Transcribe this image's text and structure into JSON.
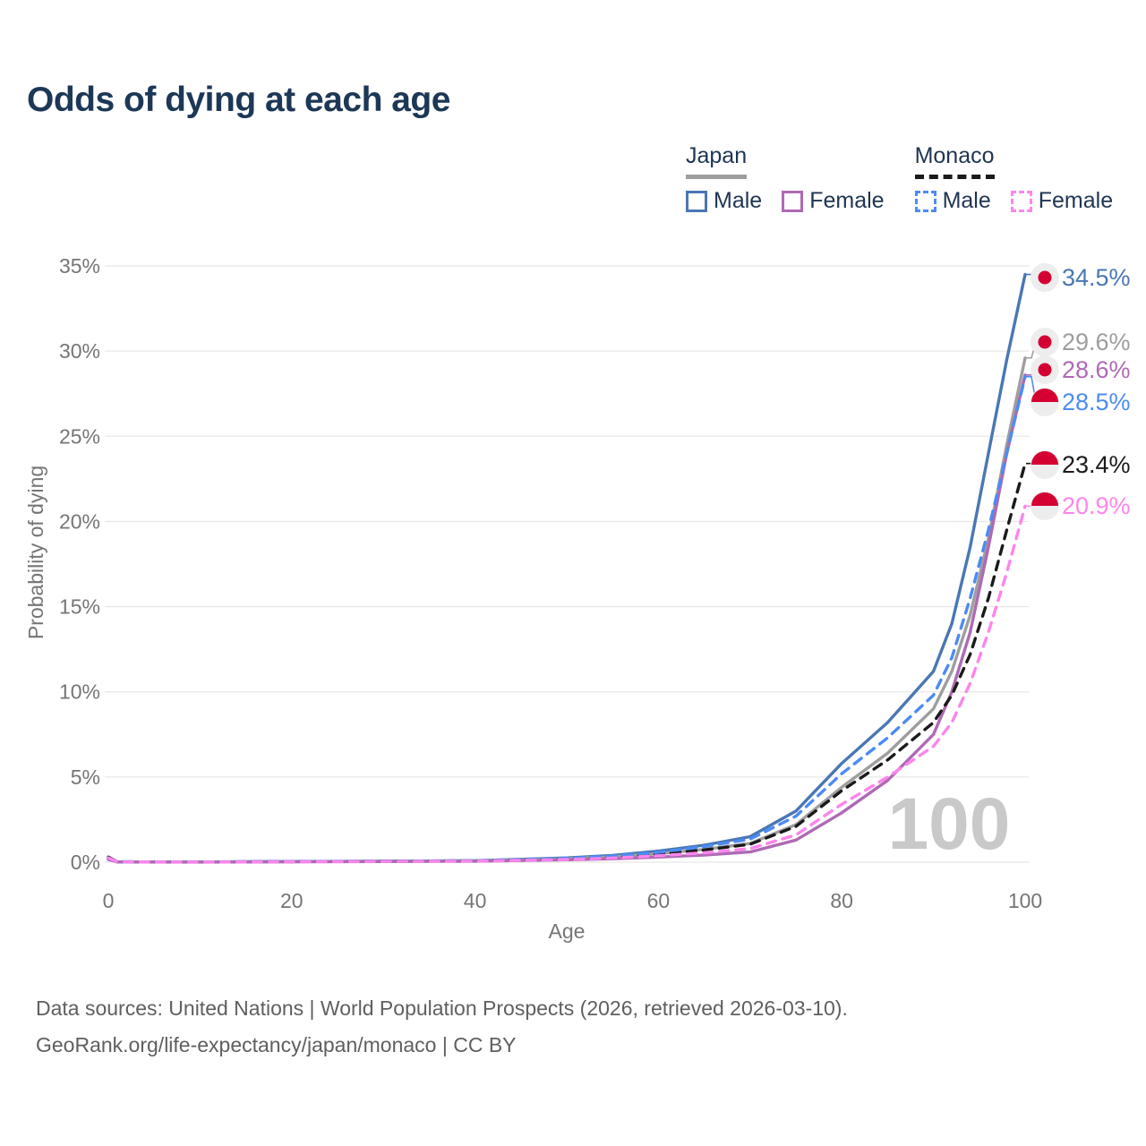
{
  "page": {
    "title": "Odds of dying at each age"
  },
  "legend": {
    "groups": [
      {
        "name": "Japan",
        "line_style": "solid",
        "items": [
          {
            "label": "Male",
            "color": "#4a77b4"
          },
          {
            "label": "Female",
            "color": "#ae6ab4"
          }
        ]
      },
      {
        "name": "Monaco",
        "line_style": "dashed",
        "items": [
          {
            "label": "Male",
            "color": "#4c8bf5"
          },
          {
            "label": "Female",
            "color": "#fc85ec"
          }
        ]
      }
    ]
  },
  "chart_data": {
    "type": "line",
    "title": "Odds of dying at each age",
    "xlabel": "Age",
    "ylabel": "Probability of dying",
    "xlim": [
      0,
      100
    ],
    "ylim": [
      0,
      35
    ],
    "x_ticks": [
      0,
      20,
      40,
      60,
      80,
      100
    ],
    "y_ticks": [
      0,
      5,
      10,
      15,
      20,
      25,
      30,
      35
    ],
    "y_tick_suffix": "%",
    "grid": true,
    "legend_position": "top-right",
    "x": [
      0,
      1,
      10,
      20,
      30,
      40,
      50,
      55,
      60,
      65,
      70,
      75,
      80,
      85,
      90,
      92,
      94,
      96,
      98,
      100
    ],
    "series": [
      {
        "name": "Japan Male",
        "country": "Japan",
        "sex": "Male",
        "color": "#4a77b4",
        "dashed": false,
        "flag": "japan",
        "end_label": "34.5%",
        "values": [
          0.2,
          0.02,
          0.01,
          0.04,
          0.06,
          0.09,
          0.25,
          0.4,
          0.65,
          1.0,
          1.5,
          3.0,
          5.8,
          8.2,
          11.2,
          14.0,
          18.5,
          24.0,
          29.5,
          34.5
        ]
      },
      {
        "name": "Japan Total",
        "country": "Japan",
        "sex": "Total",
        "color": "#9e9e9e",
        "dashed": false,
        "flag": "japan",
        "end_label": "29.6%",
        "values": [
          0.18,
          0.015,
          0.008,
          0.03,
          0.05,
          0.08,
          0.2,
          0.32,
          0.5,
          0.75,
          1.1,
          2.2,
          4.4,
          6.4,
          9.0,
          11.2,
          14.5,
          19.0,
          24.5,
          29.6
        ]
      },
      {
        "name": "Japan Female",
        "country": "Japan",
        "sex": "Female",
        "color": "#ae6ab4",
        "dashed": false,
        "flag": "japan",
        "end_label": "28.6%",
        "values": [
          0.16,
          0.012,
          0.007,
          0.02,
          0.035,
          0.06,
          0.14,
          0.2,
          0.3,
          0.42,
          0.6,
          1.3,
          2.9,
          4.8,
          7.5,
          10.0,
          13.5,
          18.5,
          24.0,
          28.6
        ]
      },
      {
        "name": "Monaco Male",
        "country": "Monaco",
        "sex": "Male",
        "color": "#4c8bf5",
        "dashed": true,
        "flag": "monaco",
        "end_label": "28.5%",
        "values": [
          0.25,
          0.02,
          0.01,
          0.035,
          0.055,
          0.085,
          0.22,
          0.36,
          0.58,
          0.92,
          1.35,
          2.7,
          5.2,
          7.3,
          9.8,
          12.0,
          15.5,
          19.5,
          24.0,
          28.5
        ]
      },
      {
        "name": "Monaco Total",
        "country": "Monaco",
        "sex": "Total",
        "color": "#1a1a1a",
        "dashed": true,
        "flag": "monaco",
        "end_label": "23.4%",
        "values": [
          0.3,
          0.02,
          0.008,
          0.03,
          0.05,
          0.08,
          0.2,
          0.3,
          0.48,
          0.72,
          1.05,
          2.1,
          4.2,
          6.0,
          8.2,
          9.8,
          12.2,
          15.5,
          19.5,
          23.4
        ]
      },
      {
        "name": "Monaco Female",
        "country": "Monaco",
        "sex": "Female",
        "color": "#fc85ec",
        "dashed": true,
        "flag": "monaco",
        "end_label": "20.9%",
        "values": [
          0.25,
          0.015,
          0.007,
          0.022,
          0.04,
          0.065,
          0.16,
          0.24,
          0.38,
          0.55,
          0.8,
          1.6,
          3.4,
          5.0,
          6.8,
          8.2,
          10.5,
          13.5,
          17.0,
          20.9
        ]
      }
    ],
    "annotations": {
      "watermark": "100"
    },
    "flag_red": "#d50032"
  },
  "footer": {
    "line1": "Data sources: United Nations | World Population Prospects (2026, retrieved 2026-03-10).",
    "line2": "GeoRank.org/life-expectancy/japan/monaco | CC BY"
  }
}
